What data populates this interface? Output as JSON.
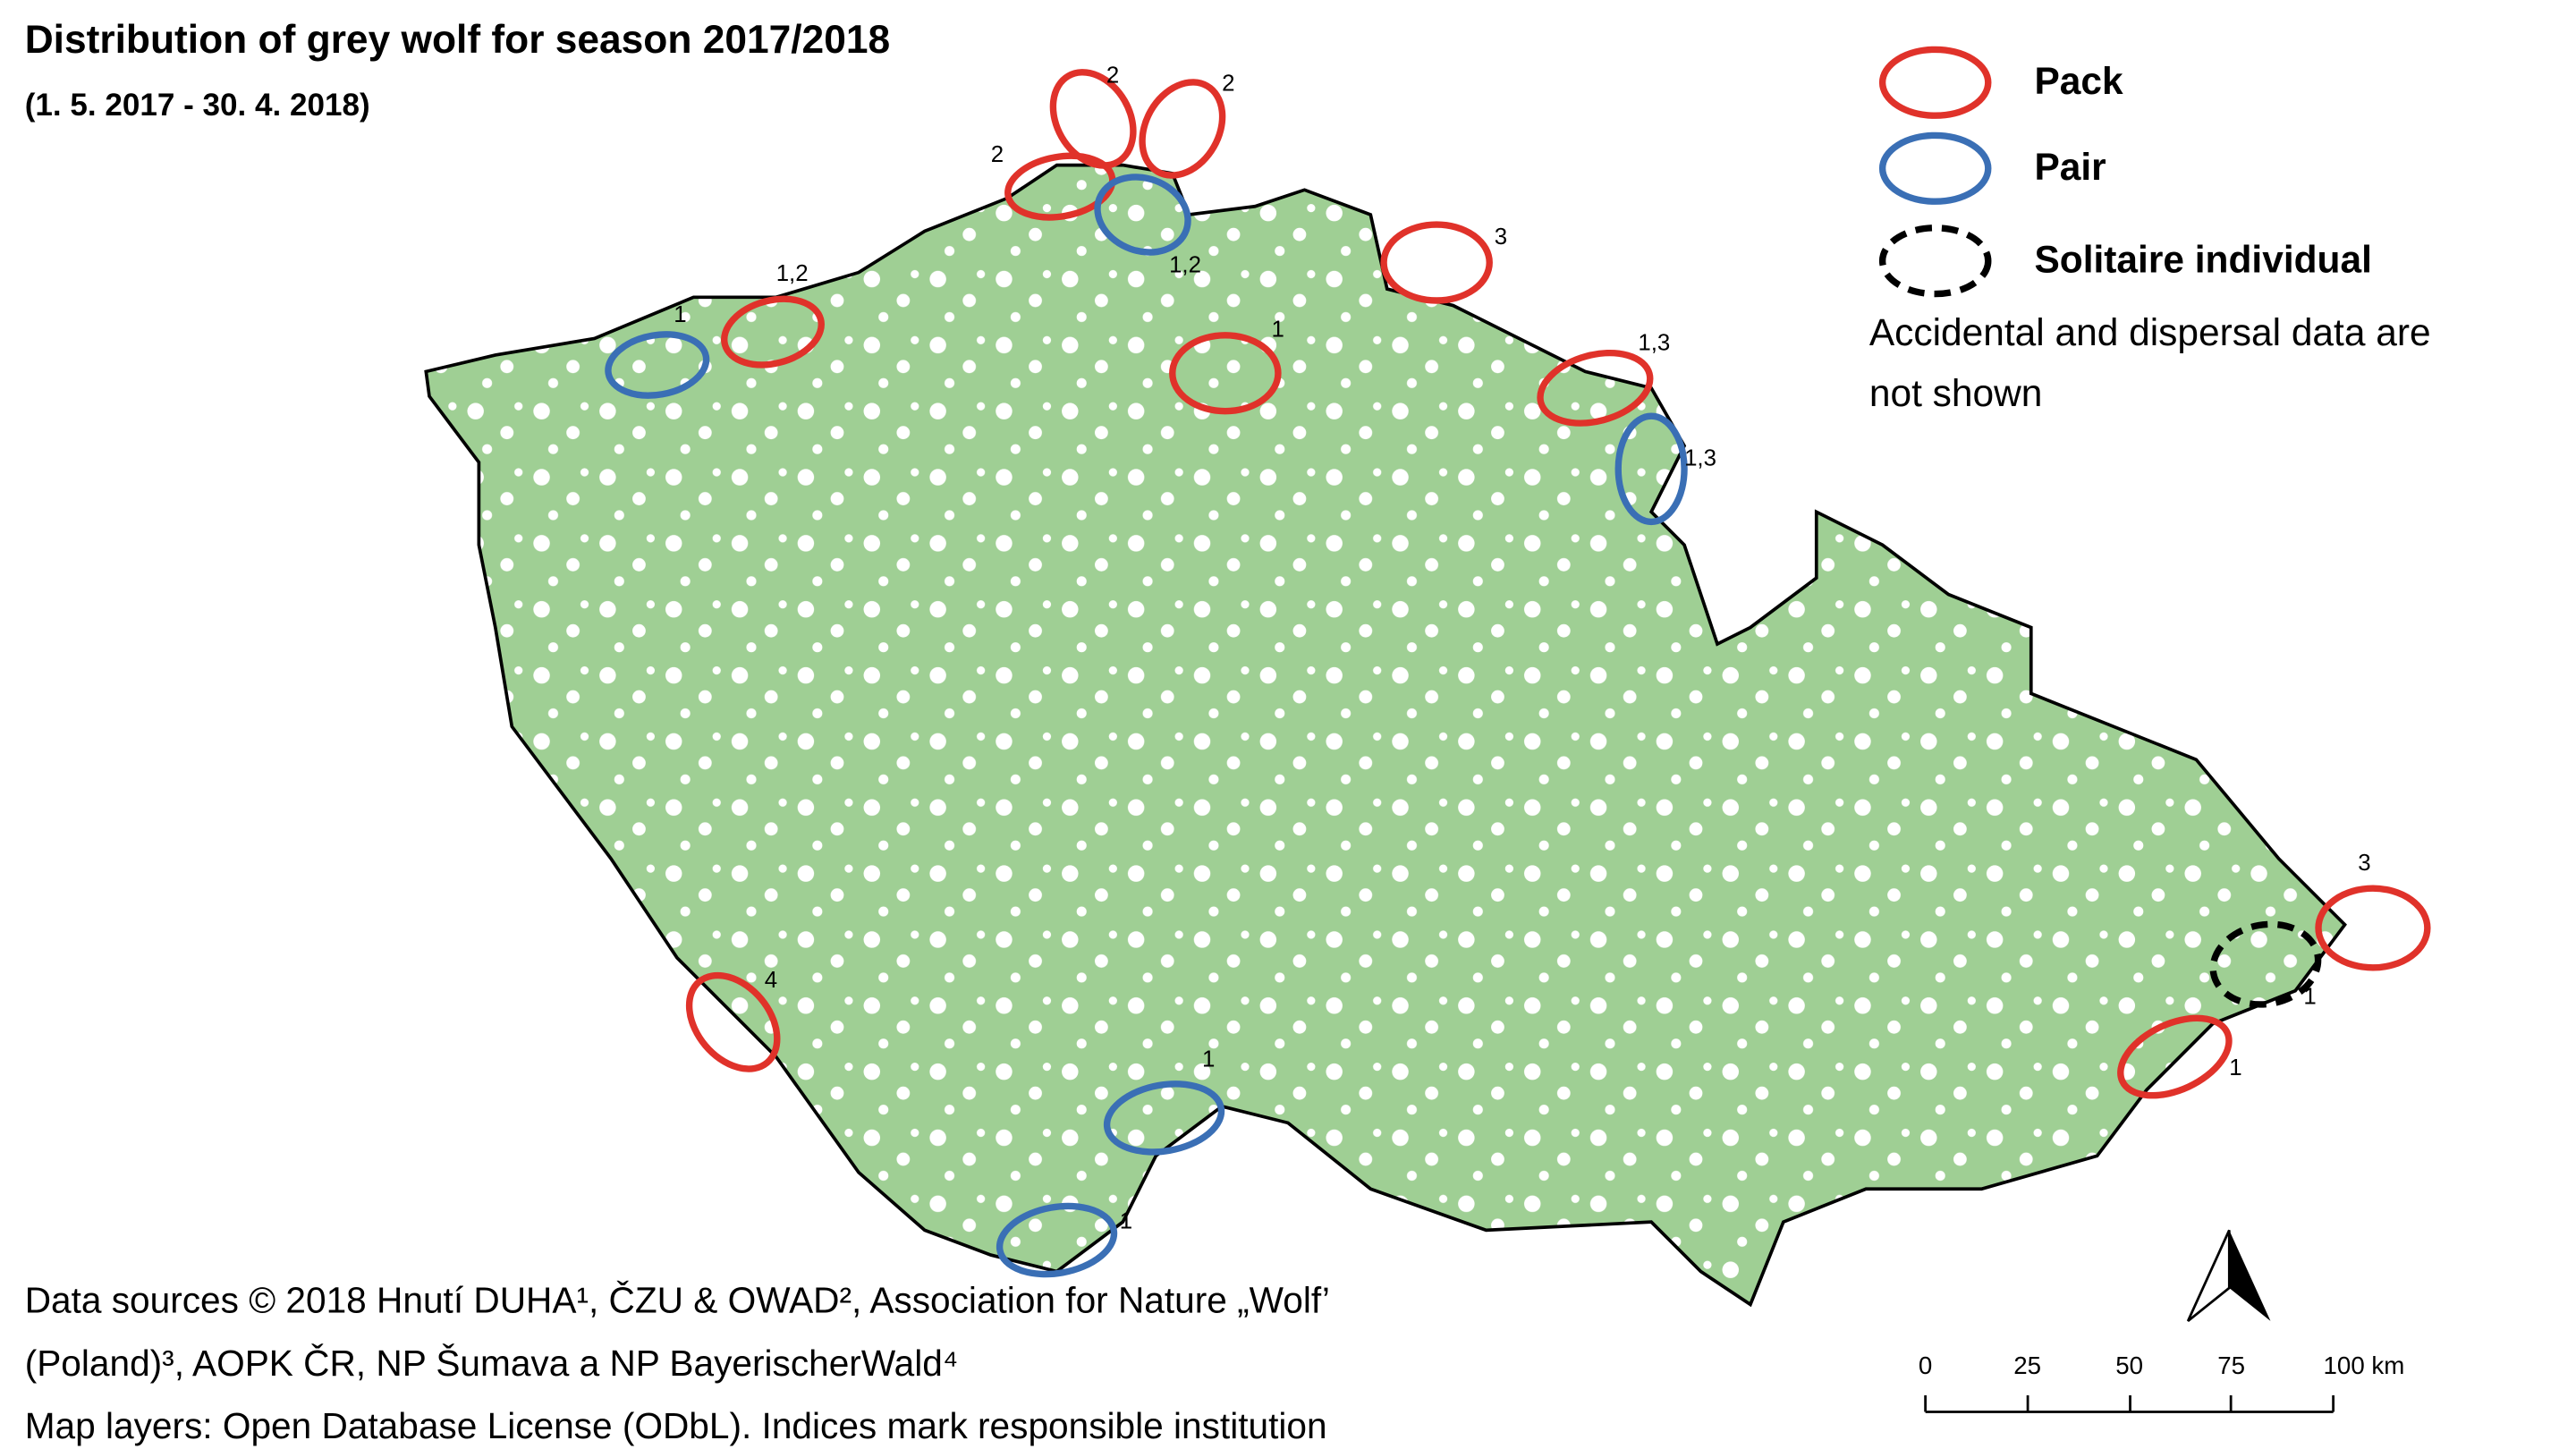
{
  "header": {
    "title": "Distribution of grey wolf for season 2017/2018",
    "subtitle": "(1. 5. 2017 - 30. 4. 2018)"
  },
  "legend": {
    "items": [
      {
        "kind": "pack",
        "label": "Pack"
      },
      {
        "kind": "pair",
        "label": "Pair"
      },
      {
        "kind": "solitaire",
        "label": "Solitaire individual"
      }
    ],
    "note": [
      "Accidental and dispersal data are",
      "not shown"
    ]
  },
  "markers": [
    {
      "kind": "pack",
      "label": "2"
    },
    {
      "kind": "pack",
      "label": "2"
    },
    {
      "kind": "pack",
      "label": "2"
    },
    {
      "kind": "pair",
      "label": "1,2"
    },
    {
      "kind": "pack",
      "label": "1,2"
    },
    {
      "kind": "pair",
      "label": "1"
    },
    {
      "kind": "pack",
      "label": "3"
    },
    {
      "kind": "pack",
      "label": "1"
    },
    {
      "kind": "pack",
      "label": "1,3"
    },
    {
      "kind": "pair",
      "label": "1,3"
    },
    {
      "kind": "pack",
      "label": "3"
    },
    {
      "kind": "solitaire",
      "label": "1"
    },
    {
      "kind": "pack",
      "label": "1"
    },
    {
      "kind": "pack",
      "label": "4"
    },
    {
      "kind": "pair",
      "label": "1"
    },
    {
      "kind": "pair",
      "label": "1"
    }
  ],
  "footer": {
    "sources": [
      "Data sources © 2018 Hnutí DUHA¹, ČZU & OWAD², Association for Nature „Wolf’",
      "(Poland)³, AOPK ČR, NP Šumava a NP BayerischerWald⁴",
      "Map layers: Open Database License (ODbL). Indices mark responsible institution"
    ]
  },
  "scale_bar": {
    "ticks": [
      "0",
      "25",
      "50",
      "75",
      "100 km"
    ]
  }
}
